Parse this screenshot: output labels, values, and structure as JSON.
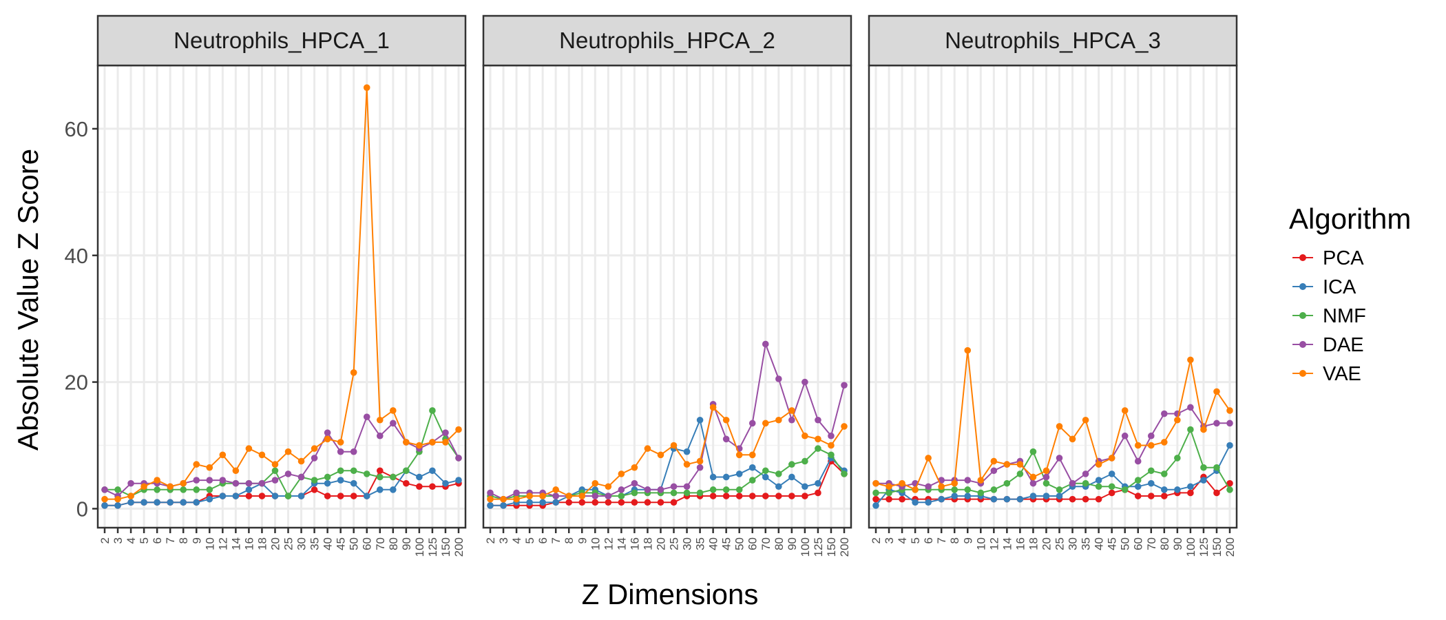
{
  "chart_data": {
    "type": "line",
    "xlabel": "Z Dimensions",
    "ylabel": "Absolute Value Z Score",
    "ylim": [
      -3,
      70
    ],
    "yticks": [
      0,
      20,
      40,
      60
    ],
    "grid": true,
    "legend_title": "Algorithm",
    "legend_position": "right",
    "categories": [
      "2",
      "3",
      "4",
      "5",
      "6",
      "7",
      "8",
      "9",
      "10",
      "12",
      "14",
      "16",
      "18",
      "20",
      "25",
      "30",
      "35",
      "40",
      "45",
      "50",
      "60",
      "70",
      "80",
      "90",
      "100",
      "125",
      "150",
      "200"
    ],
    "colors": {
      "PCA": "#e41a1c",
      "ICA": "#377eb8",
      "NMF": "#4daf4a",
      "DAE": "#984ea3",
      "VAE": "#ff7f00"
    },
    "panels": [
      {
        "title": "Neutrophils_HPCA_1",
        "series": [
          {
            "name": "PCA",
            "values": [
              0.5,
              0.5,
              1.0,
              1.0,
              1.0,
              1.0,
              1.0,
              1.0,
              2.0,
              2.0,
              2.0,
              2.0,
              2.0,
              2.0,
              2.0,
              2.0,
              3.0,
              2.0,
              2.0,
              2.0,
              2.0,
              6.0,
              5.0,
              4.0,
              3.5,
              3.5,
              3.5,
              4.0
            ]
          },
          {
            "name": "ICA",
            "values": [
              0.5,
              0.5,
              1.0,
              1.0,
              1.0,
              1.0,
              1.0,
              1.0,
              1.5,
              2.0,
              2.0,
              3.0,
              4.0,
              2.0,
              2.0,
              2.0,
              4.0,
              4.0,
              4.5,
              4.0,
              2.0,
              3.0,
              3.0,
              6.0,
              5.0,
              6.0,
              4.0,
              4.5
            ]
          },
          {
            "name": "NMF",
            "values": [
              3.0,
              3.0,
              2.0,
              3.0,
              3.0,
              3.0,
              3.0,
              3.0,
              3.0,
              4.0,
              4.0,
              4.0,
              4.0,
              6.0,
              2.0,
              5.0,
              4.5,
              5.0,
              6.0,
              6.0,
              5.5,
              5.0,
              5.0,
              6.0,
              9.0,
              15.5,
              11.0,
              8.0
            ]
          },
          {
            "name": "DAE",
            "values": [
              3.0,
              2.0,
              4.0,
              4.0,
              4.0,
              3.5,
              4.0,
              4.5,
              4.5,
              4.5,
              4.0,
              4.0,
              4.0,
              4.5,
              5.5,
              5.0,
              8.0,
              12.0,
              9.0,
              9.0,
              14.5,
              11.5,
              13.5,
              10.5,
              9.5,
              10.5,
              12.0,
              8.0
            ]
          },
          {
            "name": "VAE",
            "values": [
              1.5,
              1.5,
              2.0,
              3.5,
              4.5,
              3.5,
              4.0,
              7.0,
              6.5,
              8.5,
              6.0,
              9.5,
              8.5,
              7.0,
              9.0,
              7.5,
              9.5,
              11.0,
              10.5,
              21.5,
              66.5,
              14.0,
              15.5,
              10.5,
              10.0,
              10.5,
              10.5,
              12.5
            ]
          }
        ]
      },
      {
        "title": "Neutrophils_HPCA_2",
        "series": [
          {
            "name": "PCA",
            "values": [
              0.5,
              0.5,
              0.5,
              0.5,
              0.5,
              1.0,
              1.0,
              1.0,
              1.0,
              1.0,
              1.0,
              1.0,
              1.0,
              1.0,
              1.0,
              2.0,
              2.0,
              2.0,
              2.0,
              2.0,
              2.0,
              2.0,
              2.0,
              2.0,
              2.0,
              2.5,
              7.5,
              5.5
            ]
          },
          {
            "name": "ICA",
            "values": [
              0.5,
              0.5,
              1.0,
              1.0,
              1.0,
              1.0,
              2.0,
              3.0,
              3.0,
              2.0,
              2.0,
              3.0,
              3.0,
              3.0,
              9.5,
              9.0,
              14.0,
              5.0,
              5.0,
              5.5,
              6.5,
              5.0,
              3.5,
              5.0,
              3.5,
              4.0,
              8.0,
              6.0
            ]
          },
          {
            "name": "NMF",
            "values": [
              2.0,
              1.5,
              2.0,
              2.0,
              2.0,
              2.0,
              2.0,
              2.5,
              2.5,
              2.0,
              2.0,
              2.5,
              2.5,
              2.5,
              2.5,
              2.5,
              2.5,
              3.0,
              3.0,
              3.0,
              4.5,
              6.0,
              5.5,
              7.0,
              7.5,
              9.5,
              8.5,
              5.5
            ]
          },
          {
            "name": "DAE",
            "values": [
              2.5,
              1.5,
              2.5,
              2.5,
              2.5,
              2.0,
              2.0,
              2.0,
              2.0,
              2.0,
              3.0,
              4.0,
              3.0,
              3.0,
              3.5,
              3.5,
              6.5,
              16.5,
              11.0,
              9.5,
              13.5,
              26.0,
              20.5,
              14.0,
              20.0,
              14.0,
              11.5,
              19.5
            ]
          },
          {
            "name": "VAE",
            "values": [
              1.5,
              1.5,
              1.5,
              2.0,
              2.0,
              3.0,
              2.0,
              2.0,
              4.0,
              3.5,
              5.5,
              6.5,
              9.5,
              8.5,
              10.0,
              7.0,
              7.5,
              16.0,
              14.0,
              8.5,
              8.5,
              13.5,
              14.0,
              15.5,
              11.5,
              11.0,
              10.0,
              13.0
            ]
          }
        ]
      },
      {
        "title": "Neutrophils_HPCA_3",
        "series": [
          {
            "name": "PCA",
            "values": [
              1.5,
              1.5,
              1.5,
              1.5,
              1.5,
              1.5,
              1.5,
              1.5,
              1.5,
              1.5,
              1.5,
              1.5,
              1.5,
              1.5,
              1.5,
              1.5,
              1.5,
              1.5,
              2.5,
              3.0,
              2.0,
              2.0,
              2.0,
              2.5,
              2.5,
              5.0,
              2.5,
              4.0
            ]
          },
          {
            "name": "ICA",
            "values": [
              0.5,
              3.0,
              2.5,
              1.0,
              1.0,
              1.5,
              2.0,
              2.0,
              2.0,
              1.5,
              1.5,
              1.5,
              2.0,
              2.0,
              2.0,
              3.5,
              3.5,
              4.5,
              5.5,
              3.5,
              3.5,
              4.0,
              3.0,
              3.0,
              3.5,
              4.5,
              6.0,
              10.0
            ]
          },
          {
            "name": "NMF",
            "values": [
              2.5,
              2.5,
              3.0,
              3.0,
              3.0,
              3.0,
              3.0,
              3.0,
              2.5,
              3.0,
              4.0,
              5.5,
              9.0,
              4.0,
              3.0,
              4.0,
              4.0,
              3.5,
              3.5,
              3.0,
              4.5,
              6.0,
              5.5,
              8.0,
              12.5,
              6.5,
              6.5,
              3.0
            ]
          },
          {
            "name": "DAE",
            "values": [
              4.0,
              4.0,
              3.5,
              4.0,
              3.5,
              4.5,
              4.5,
              4.5,
              4.0,
              6.0,
              7.0,
              7.5,
              4.0,
              5.0,
              8.0,
              4.0,
              5.5,
              7.5,
              8.0,
              11.5,
              7.5,
              11.5,
              15.0,
              15.0,
              16.0,
              13.0,
              13.5,
              13.5
            ]
          },
          {
            "name": "VAE",
            "values": [
              4.0,
              3.5,
              4.0,
              3.0,
              8.0,
              3.5,
              4.0,
              25.0,
              4.5,
              7.5,
              7.0,
              7.0,
              5.0,
              6.0,
              13.0,
              11.0,
              14.0,
              7.0,
              8.0,
              15.5,
              10.0,
              10.0,
              10.5,
              14.0,
              23.5,
              12.5,
              18.5,
              15.5
            ]
          }
        ]
      }
    ]
  }
}
